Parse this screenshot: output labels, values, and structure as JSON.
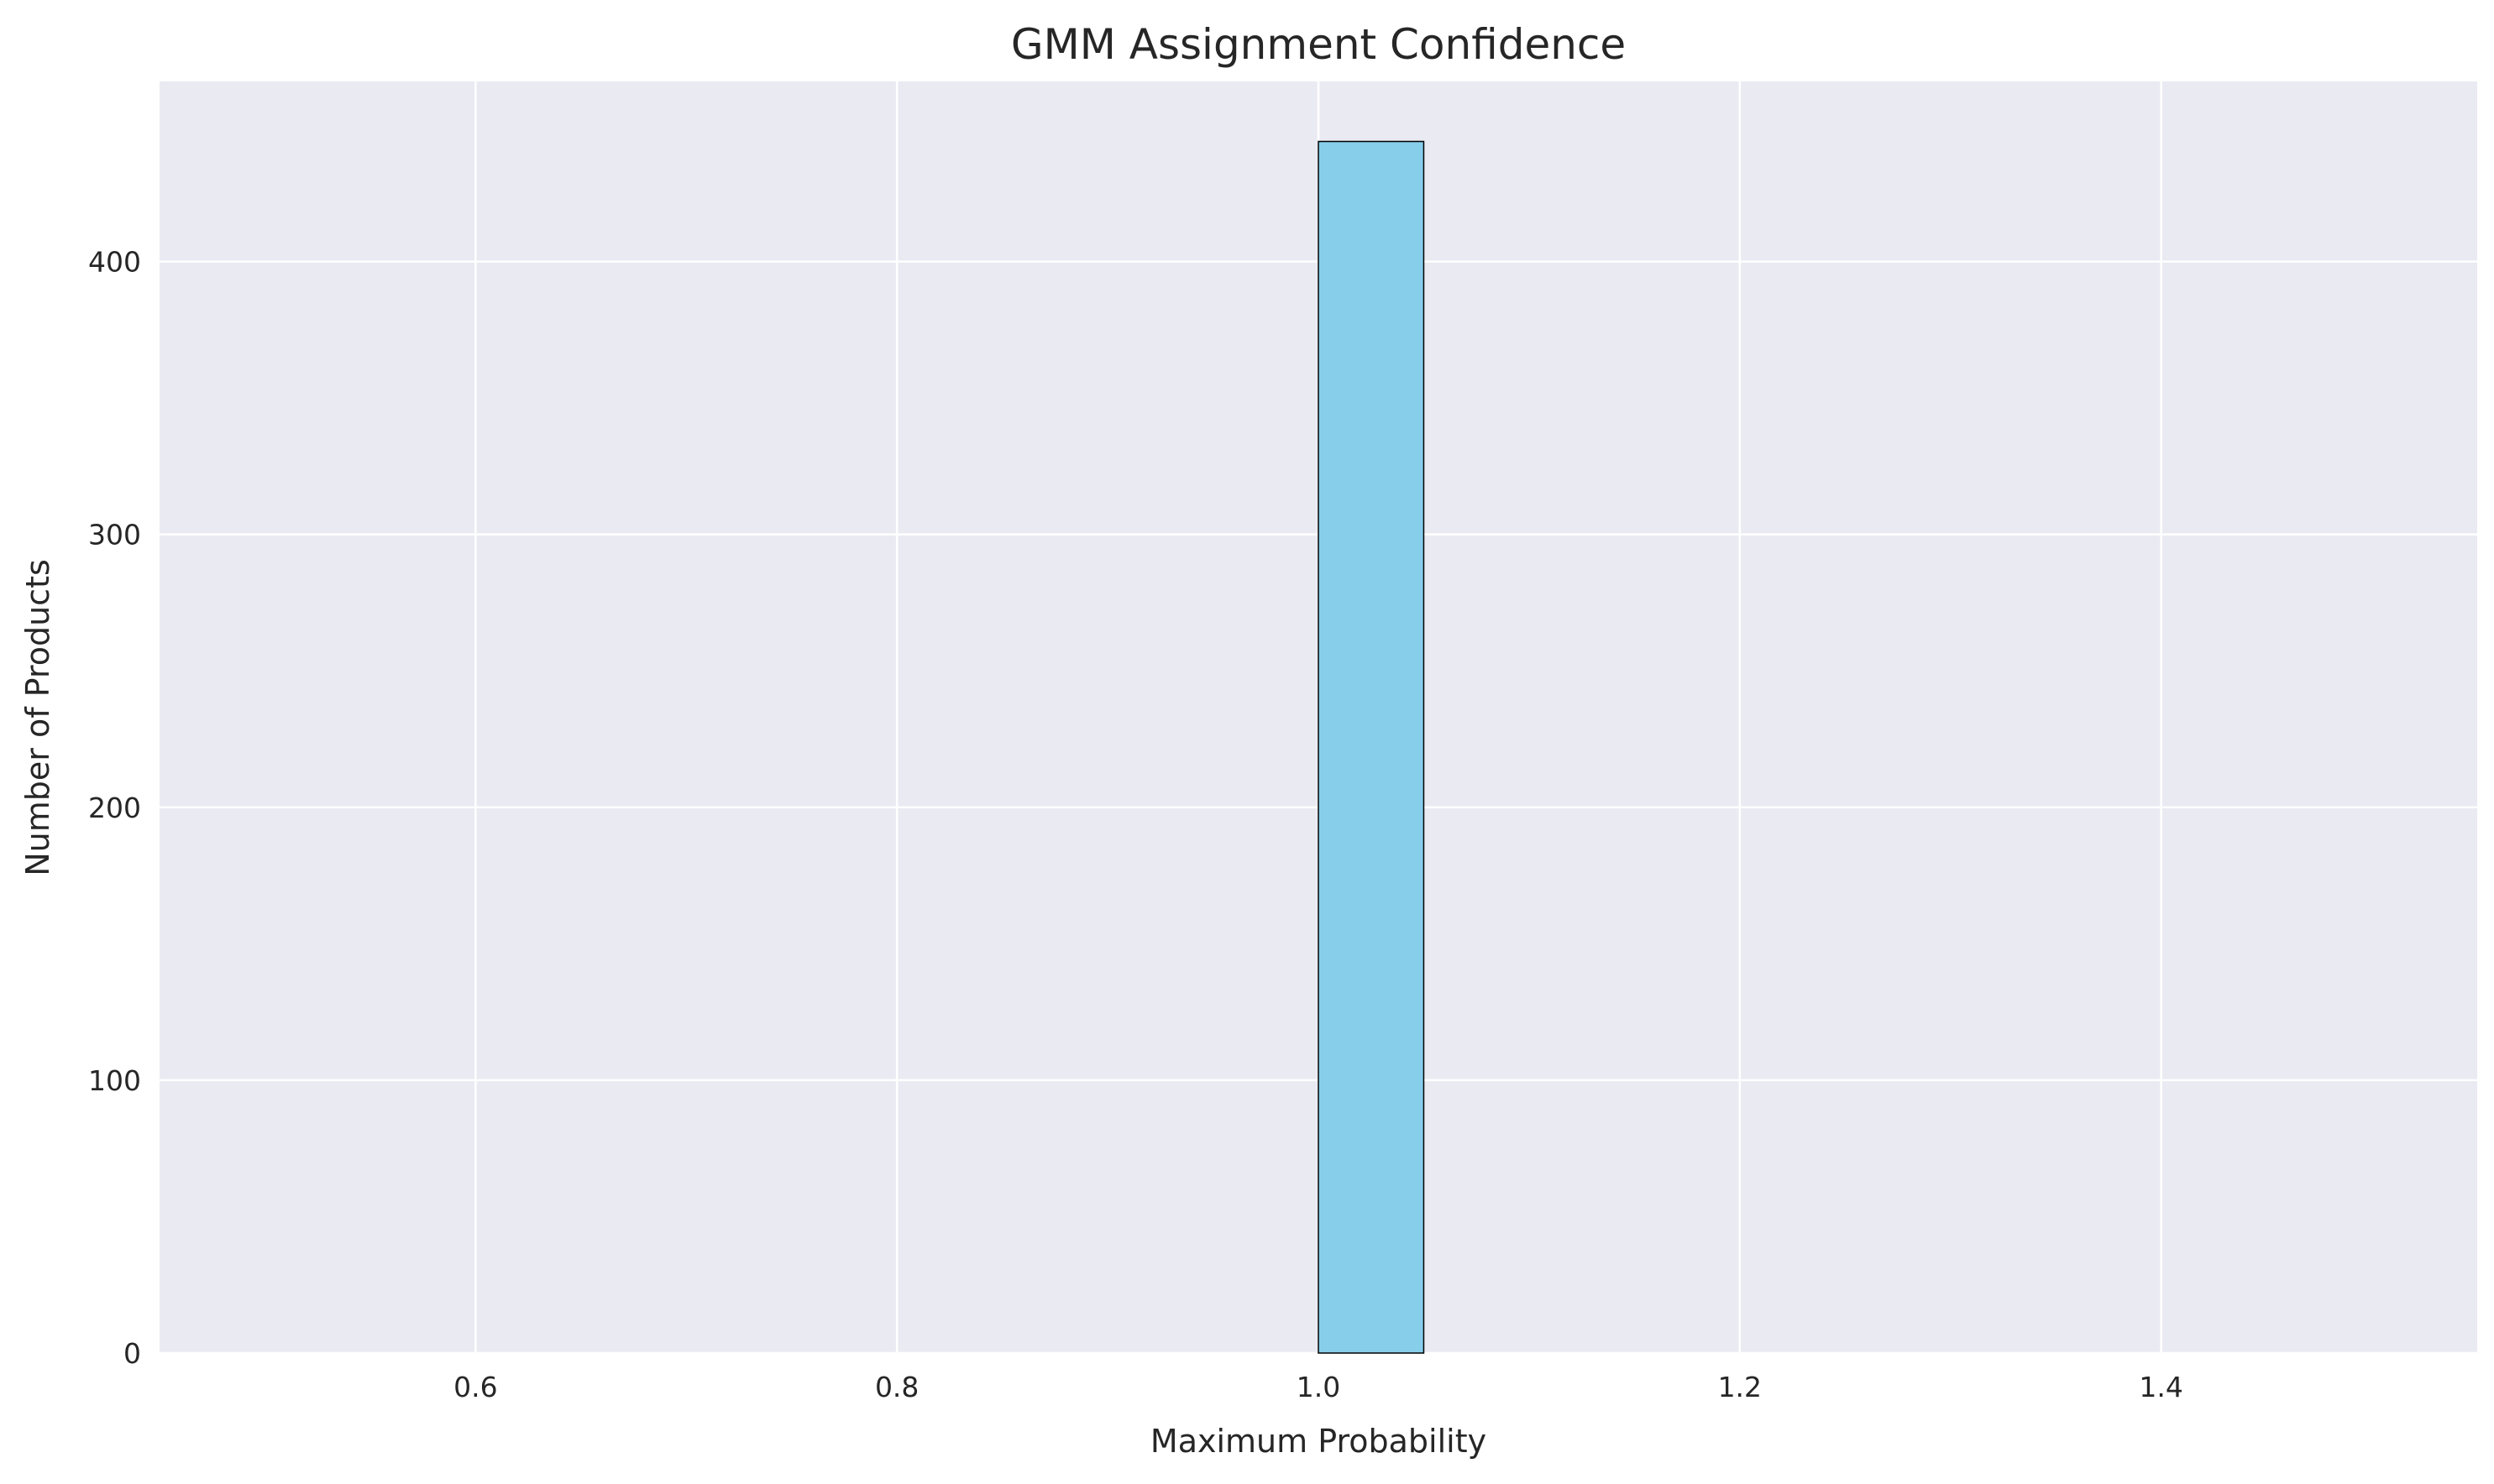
{
  "chart_data": {
    "type": "bar",
    "title": "GMM Assignment Confidence",
    "xlabel": "Maximum Probability",
    "ylabel": "Number of Products",
    "bins": {
      "edges": [
        0.5,
        0.55,
        0.6,
        0.65,
        0.7,
        0.75,
        0.8,
        0.85,
        0.9,
        0.95,
        1.0,
        1.05,
        1.1,
        1.15,
        1.2,
        1.25,
        1.3,
        1.35,
        1.4,
        1.45,
        1.5
      ],
      "counts": [
        0,
        0,
        0,
        0,
        0,
        0,
        0,
        0,
        0,
        0,
        444,
        0,
        0,
        0,
        0,
        0,
        0,
        0,
        0,
        0
      ]
    },
    "xlim": [
      0.45,
      1.55
    ],
    "ylim": [
      0,
      466
    ],
    "xticks": [
      0.6,
      0.8,
      1.0,
      1.2,
      1.4
    ],
    "xtick_labels": [
      "0.6",
      "0.8",
      "1.0",
      "1.2",
      "1.4"
    ],
    "yticks": [
      0,
      100,
      200,
      300,
      400
    ],
    "ytick_labels": [
      "0",
      "100",
      "200",
      "300",
      "400"
    ],
    "grid": true,
    "colors": {
      "bar_fill": "#87CEEB",
      "bar_edge": "#000000",
      "plot_background": "#EAEAF2",
      "grid": "#FFFFFF",
      "text": "#262626"
    }
  }
}
